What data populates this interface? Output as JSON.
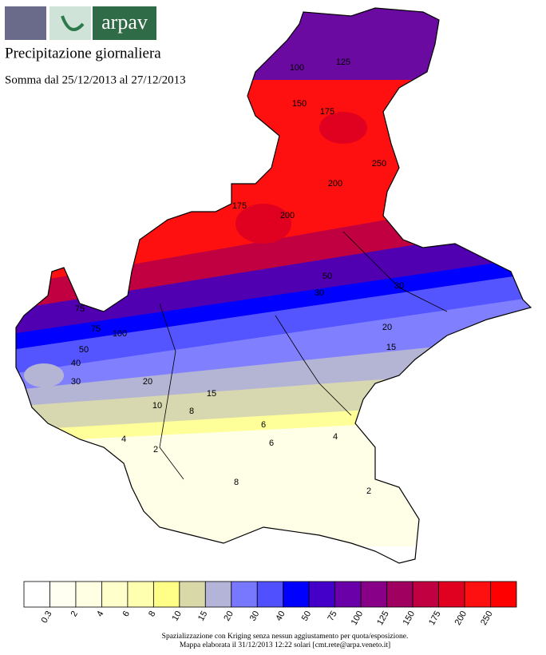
{
  "header": {
    "logo_text": "arpav",
    "title": "Precipitazione giornaliera",
    "subtitle": "Somma dal 25/12/2013 al 27/12/2013"
  },
  "map": {
    "contour_labels": [
      "100",
      "125",
      "150",
      "175",
      "200",
      "250",
      "175",
      "200",
      "100",
      "75",
      "50",
      "40",
      "30",
      "20",
      "15",
      "10",
      "8",
      "6",
      "4",
      "2",
      "8",
      "2",
      "30",
      "20",
      "15",
      "6",
      "4",
      "75",
      "50",
      "30"
    ]
  },
  "legend": {
    "colors": [
      "#ffffff",
      "#fffff2",
      "#ffffe4",
      "#ffffcc",
      "#ffffb0",
      "#ffff88",
      "#d8d8a8",
      "#b4b4d8",
      "#7878ff",
      "#5050ff",
      "#0000ff",
      "#4400c8",
      "#6a00a8",
      "#880088",
      "#a00060",
      "#c00040",
      "#e00020",
      "#ff1010",
      "#ff0000"
    ],
    "labels": [
      "0.3",
      "2",
      "4",
      "6",
      "8",
      "10",
      "15",
      "20",
      "30",
      "40",
      "50",
      "75",
      "100",
      "125",
      "150",
      "175",
      "200",
      "250"
    ]
  },
  "footer": {
    "line1": "Spazializzazione con Kriging senza nessun aggiustamento per quota/esposizione.",
    "line2": "Mappa elaborata il 31/12/2013 12:22 solari [cmt.rete@arpa.veneto.it]"
  }
}
